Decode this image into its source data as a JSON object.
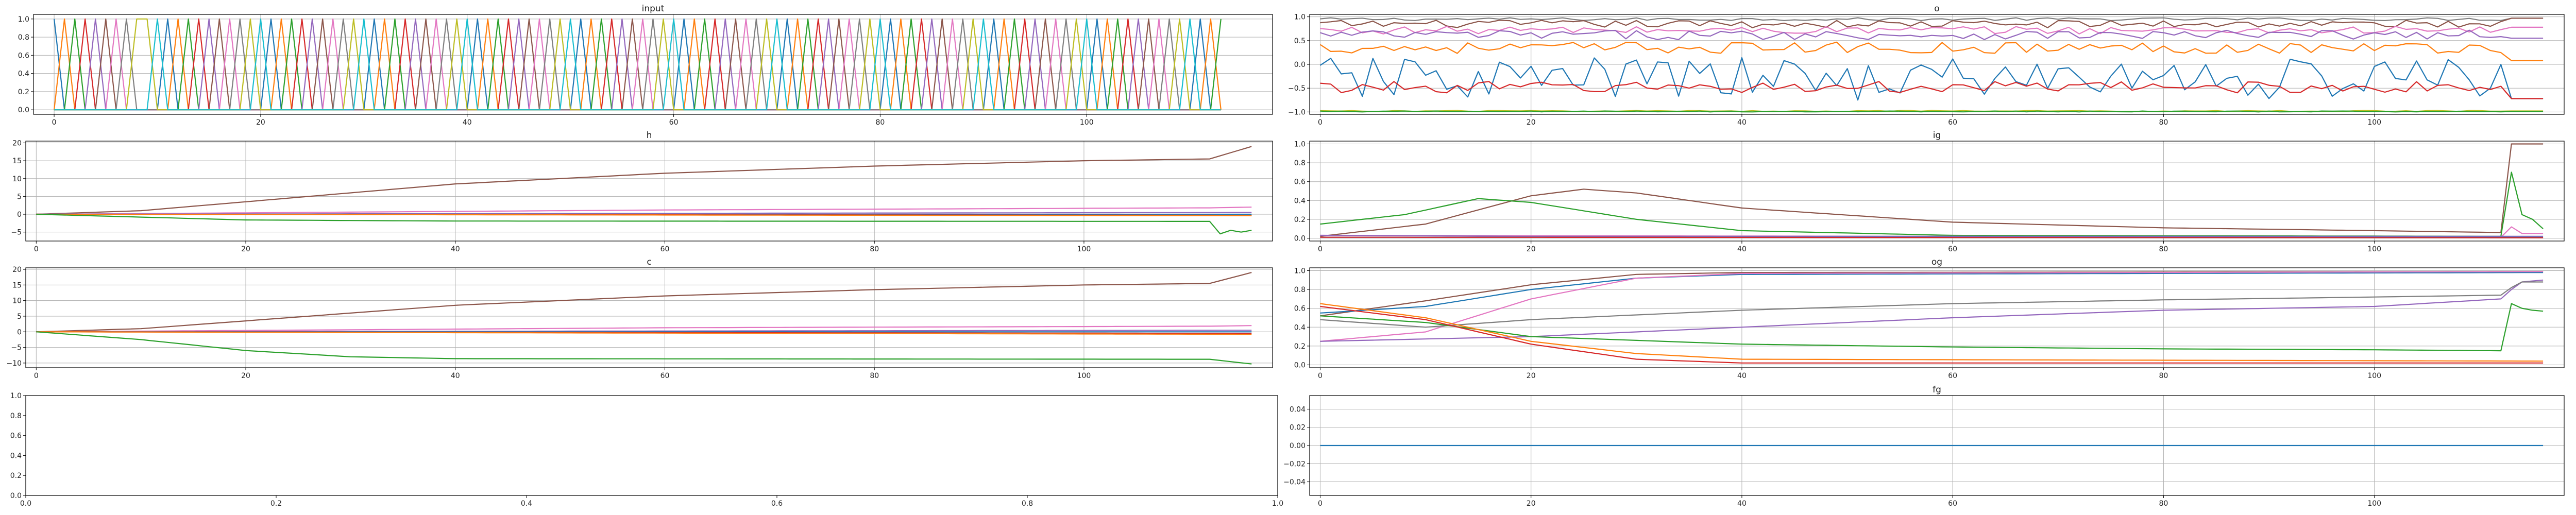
{
  "palette": [
    "#1f77b4",
    "#ff7f0e",
    "#2ca02c",
    "#d62728",
    "#9467bd",
    "#8c564b",
    "#e377c2",
    "#7f7f7f",
    "#bcbd22",
    "#17becf"
  ],
  "chart_data": [
    {
      "id": "input",
      "type": "line",
      "title": "input",
      "xlim": [
        -2,
        118
      ],
      "ylim": [
        -0.05,
        1.05
      ],
      "xticks": [
        0,
        20,
        40,
        60,
        80,
        100
      ],
      "yticks": [
        0.0,
        0.2,
        0.4,
        0.6,
        0.8,
        1.0
      ],
      "ytick_decimals": 1,
      "grid": true,
      "gen": "onehot",
      "tokens": [
        0,
        1,
        2,
        3,
        4,
        5,
        6,
        7,
        8,
        8,
        9,
        0,
        1,
        2,
        3,
        4,
        5,
        6,
        7,
        8,
        9,
        0,
        1,
        2,
        3,
        4,
        5,
        6,
        7,
        8,
        9,
        0,
        1,
        2,
        3,
        4,
        5,
        6,
        7,
        8,
        9,
        0,
        1,
        2,
        3,
        4,
        5,
        6,
        7,
        8,
        9,
        0,
        1,
        2,
        3,
        4,
        5,
        6,
        7,
        8,
        9,
        0,
        1,
        2,
        3,
        4,
        5,
        6,
        7,
        8,
        9,
        0,
        1,
        2,
        3,
        4,
        5,
        6,
        7,
        8,
        9,
        0,
        1,
        2,
        3,
        4,
        5,
        6,
        7,
        8,
        9,
        0,
        1,
        2,
        3,
        4,
        5,
        6,
        7,
        8,
        9,
        0,
        1,
        2,
        3,
        4,
        5,
        6,
        7,
        8,
        9,
        0,
        1,
        2
      ]
    },
    {
      "id": "o",
      "type": "line",
      "title": "o",
      "xlim": [
        -1,
        118
      ],
      "ylim": [
        -1.05,
        1.05
      ],
      "xticks": [
        0,
        20,
        40,
        60,
        80,
        100
      ],
      "yticks": [
        -1.0,
        -0.5,
        0.0,
        0.5,
        1.0
      ],
      "ytick_decimals": 1,
      "grid": true,
      "gen": "noisy",
      "n": 117,
      "series": [
        {
          "color_index": 7,
          "base": 0.95,
          "amp": 0.03,
          "end": 0.97
        },
        {
          "color_index": 5,
          "base": 0.85,
          "amp": 0.08,
          "end": 0.97
        },
        {
          "color_index": 6,
          "base": 0.72,
          "amp": 0.08,
          "end": 0.78
        },
        {
          "color_index": 4,
          "base": 0.62,
          "amp": 0.1,
          "end": 0.55
        },
        {
          "color_index": 1,
          "base": 0.35,
          "amp": 0.12,
          "end": 0.08
        },
        {
          "color_index": 0,
          "base": -0.3,
          "amp": 0.45,
          "end": -0.72
        },
        {
          "color_index": 3,
          "base": -0.48,
          "amp": 0.12,
          "end": -0.72
        },
        {
          "color_index": 8,
          "base": -0.98,
          "amp": 0.01,
          "end": -0.98
        },
        {
          "color_index": 2,
          "base": -0.99,
          "amp": 0.01,
          "end": -0.99
        }
      ]
    },
    {
      "id": "h",
      "type": "line",
      "title": "h",
      "xlim": [
        -1,
        118
      ],
      "ylim": [
        -7.5,
        20.5
      ],
      "xticks": [
        0,
        20,
        40,
        60,
        80,
        100
      ],
      "yticks": [
        -5,
        0,
        5,
        10,
        15,
        20
      ],
      "ytick_decimals": 0,
      "grid": true,
      "gen": "knots",
      "n": 117,
      "series": [
        {
          "color_index": 5,
          "knots": [
            [
              0,
              0
            ],
            [
              10,
              1
            ],
            [
              20,
              3.5
            ],
            [
              40,
              8.5
            ],
            [
              60,
              11.5
            ],
            [
              80,
              13.5
            ],
            [
              100,
              15
            ],
            [
              112,
              15.5
            ],
            [
              116,
              19
            ]
          ]
        },
        {
          "color_index": 6,
          "knots": [
            [
              0,
              0
            ],
            [
              60,
              1.2
            ],
            [
              112,
              1.8
            ],
            [
              116,
              2.0
            ]
          ]
        },
        {
          "color_index": 4,
          "knots": [
            [
              0,
              0
            ],
            [
              116,
              0.5
            ]
          ]
        },
        {
          "color_index": 0,
          "knots": [
            [
              0,
              0
            ],
            [
              116,
              0
            ]
          ]
        },
        {
          "color_index": 3,
          "knots": [
            [
              0,
              0
            ],
            [
              116,
              -0.3
            ]
          ]
        },
        {
          "color_index": 1,
          "knots": [
            [
              0,
              0
            ],
            [
              116,
              -0.4
            ]
          ]
        },
        {
          "color_index": 2,
          "knots": [
            [
              0,
              0
            ],
            [
              10,
              -0.8
            ],
            [
              20,
              -1.6
            ],
            [
              40,
              -1.9
            ],
            [
              112,
              -2.0
            ],
            [
              113,
              -5.5
            ],
            [
              114,
              -4.5
            ],
            [
              115,
              -5.0
            ],
            [
              116,
              -4.5
            ]
          ]
        }
      ]
    },
    {
      "id": "ig",
      "type": "line",
      "title": "ig",
      "xlim": [
        -1,
        118
      ],
      "ylim": [
        -0.03,
        1.03
      ],
      "xticks": [
        0,
        20,
        40,
        60,
        80,
        100
      ],
      "yticks": [
        0.0,
        0.2,
        0.4,
        0.6,
        0.8,
        1.0
      ],
      "ytick_decimals": 1,
      "grid": true,
      "gen": "knots",
      "n": 117,
      "series": [
        {
          "color_index": 5,
          "knots": [
            [
              0,
              0.02
            ],
            [
              10,
              0.15
            ],
            [
              20,
              0.45
            ],
            [
              25,
              0.52
            ],
            [
              30,
              0.48
            ],
            [
              40,
              0.32
            ],
            [
              60,
              0.17
            ],
            [
              80,
              0.11
            ],
            [
              100,
              0.08
            ],
            [
              112,
              0.06
            ],
            [
              113,
              1.0
            ],
            [
              116,
              1.0
            ]
          ]
        },
        {
          "color_index": 2,
          "knots": [
            [
              0,
              0.15
            ],
            [
              8,
              0.25
            ],
            [
              15,
              0.42
            ],
            [
              20,
              0.38
            ],
            [
              30,
              0.2
            ],
            [
              40,
              0.08
            ],
            [
              60,
              0.03
            ],
            [
              112,
              0.02
            ],
            [
              113,
              0.7
            ],
            [
              114,
              0.25
            ],
            [
              115,
              0.2
            ],
            [
              116,
              0.1
            ]
          ]
        },
        {
          "color_index": 6,
          "knots": [
            [
              0,
              0.03
            ],
            [
              112,
              0.01
            ],
            [
              113,
              0.12
            ],
            [
              114,
              0.05
            ],
            [
              116,
              0.05
            ]
          ]
        },
        {
          "color_index": 4,
          "knots": [
            [
              0,
              0.03
            ],
            [
              20,
              0.02
            ],
            [
              112,
              0.02
            ],
            [
              116,
              0.02
            ]
          ]
        },
        {
          "color_index": 0,
          "knots": [
            [
              0,
              0.01
            ],
            [
              116,
              0.01
            ]
          ]
        },
        {
          "color_index": 3,
          "knots": [
            [
              0,
              0.01
            ],
            [
              116,
              0.005
            ]
          ]
        }
      ]
    },
    {
      "id": "c",
      "type": "line",
      "title": "c",
      "xlim": [
        -1,
        118
      ],
      "ylim": [
        -11.5,
        20.5
      ],
      "xticks": [
        0,
        20,
        40,
        60,
        80,
        100
      ],
      "yticks": [
        -10,
        -5,
        0,
        5,
        10,
        15,
        20
      ],
      "ytick_decimals": 0,
      "grid": true,
      "gen": "knots",
      "n": 117,
      "series": [
        {
          "color_index": 5,
          "knots": [
            [
              0,
              0
            ],
            [
              10,
              1
            ],
            [
              20,
              3.5
            ],
            [
              40,
              8.5
            ],
            [
              60,
              11.5
            ],
            [
              80,
              13.5
            ],
            [
              100,
              15
            ],
            [
              112,
              15.5
            ],
            [
              116,
              19
            ]
          ]
        },
        {
          "color_index": 6,
          "knots": [
            [
              0,
              0
            ],
            [
              60,
              1.3
            ],
            [
              112,
              1.8
            ],
            [
              116,
              2.0
            ]
          ]
        },
        {
          "color_index": 4,
          "knots": [
            [
              0,
              0
            ],
            [
              116,
              0.5
            ]
          ]
        },
        {
          "color_index": 0,
          "knots": [
            [
              0,
              0
            ],
            [
              116,
              0
            ]
          ]
        },
        {
          "color_index": 3,
          "knots": [
            [
              0,
              0
            ],
            [
              116,
              -0.5
            ]
          ]
        },
        {
          "color_index": 1,
          "knots": [
            [
              0,
              0
            ],
            [
              116,
              -0.8
            ]
          ]
        },
        {
          "color_index": 2,
          "knots": [
            [
              0,
              0
            ],
            [
              10,
              -2.5
            ],
            [
              20,
              -6
            ],
            [
              30,
              -8
            ],
            [
              40,
              -8.6
            ],
            [
              112,
              -8.8
            ],
            [
              116,
              -10.3
            ]
          ]
        }
      ]
    },
    {
      "id": "og",
      "type": "line",
      "title": "og",
      "xlim": [
        -1,
        118
      ],
      "ylim": [
        -0.03,
        1.03
      ],
      "xticks": [
        0,
        20,
        40,
        60,
        80,
        100
      ],
      "yticks": [
        0.0,
        0.2,
        0.4,
        0.6,
        0.8,
        1.0
      ],
      "ytick_decimals": 1,
      "grid": true,
      "gen": "knots",
      "n": 117,
      "series": [
        {
          "color_index": 5,
          "knots": [
            [
              0,
              0.52
            ],
            [
              10,
              0.68
            ],
            [
              20,
              0.85
            ],
            [
              30,
              0.96
            ],
            [
              40,
              0.98
            ],
            [
              116,
              0.99
            ]
          ]
        },
        {
          "color_index": 0,
          "knots": [
            [
              0,
              0.55
            ],
            [
              10,
              0.62
            ],
            [
              20,
              0.8
            ],
            [
              30,
              0.92
            ],
            [
              40,
              0.96
            ],
            [
              116,
              0.98
            ]
          ]
        },
        {
          "color_index": 6,
          "knots": [
            [
              0,
              0.25
            ],
            [
              10,
              0.35
            ],
            [
              20,
              0.7
            ],
            [
              30,
              0.92
            ],
            [
              40,
              0.97
            ],
            [
              116,
              0.99
            ]
          ]
        },
        {
          "color_index": 4,
          "knots": [
            [
              0,
              0.25
            ],
            [
              20,
              0.3
            ],
            [
              40,
              0.4
            ],
            [
              60,
              0.5
            ],
            [
              80,
              0.58
            ],
            [
              100,
              0.62
            ],
            [
              112,
              0.7
            ],
            [
              113,
              0.8
            ],
            [
              114,
              0.88
            ],
            [
              116,
              0.9
            ]
          ]
        },
        {
          "color_index": 7,
          "knots": [
            [
              0,
              0.48
            ],
            [
              10,
              0.4
            ],
            [
              20,
              0.48
            ],
            [
              40,
              0.58
            ],
            [
              60,
              0.65
            ],
            [
              80,
              0.69
            ],
            [
              100,
              0.72
            ],
            [
              112,
              0.74
            ],
            [
              113,
              0.82
            ],
            [
              114,
              0.88
            ],
            [
              116,
              0.88
            ]
          ]
        },
        {
          "color_index": 2,
          "knots": [
            [
              0,
              0.52
            ],
            [
              10,
              0.45
            ],
            [
              20,
              0.3
            ],
            [
              40,
              0.22
            ],
            [
              60,
              0.19
            ],
            [
              80,
              0.17
            ],
            [
              100,
              0.16
            ],
            [
              112,
              0.15
            ],
            [
              113,
              0.65
            ],
            [
              114,
              0.6
            ],
            [
              115,
              0.58
            ],
            [
              116,
              0.57
            ]
          ]
        },
        {
          "color_index": 1,
          "knots": [
            [
              0,
              0.65
            ],
            [
              10,
              0.5
            ],
            [
              20,
              0.25
            ],
            [
              30,
              0.12
            ],
            [
              40,
              0.06
            ],
            [
              116,
              0.04
            ]
          ]
        },
        {
          "color_index": 3,
          "knots": [
            [
              0,
              0.62
            ],
            [
              10,
              0.48
            ],
            [
              20,
              0.22
            ],
            [
              30,
              0.06
            ],
            [
              40,
              0.02
            ],
            [
              116,
              0.02
            ]
          ]
        }
      ]
    },
    {
      "id": "empty",
      "type": "line",
      "title": "",
      "xlim": [
        0,
        1
      ],
      "ylim": [
        0,
        1
      ],
      "xticks": [
        0.0,
        0.2,
        0.4,
        0.6,
        0.8,
        1.0
      ],
      "yticks": [
        0.0,
        0.2,
        0.4,
        0.6,
        0.8,
        1.0
      ],
      "ytick_decimals": 1,
      "xtick_decimals": 1,
      "grid": false,
      "gen": "none",
      "series": []
    },
    {
      "id": "fg",
      "type": "line",
      "title": "fg",
      "xlim": [
        -1,
        118
      ],
      "ylim": [
        -0.055,
        0.055
      ],
      "xticks": [
        0,
        20,
        40,
        60,
        80,
        100
      ],
      "yticks": [
        -0.04,
        -0.02,
        0.0,
        0.02,
        0.04
      ],
      "ytick_decimals": 2,
      "grid": true,
      "gen": "knots",
      "n": 117,
      "series": [
        {
          "color_index": 0,
          "knots": [
            [
              0,
              0
            ],
            [
              116,
              0
            ]
          ]
        }
      ]
    }
  ]
}
